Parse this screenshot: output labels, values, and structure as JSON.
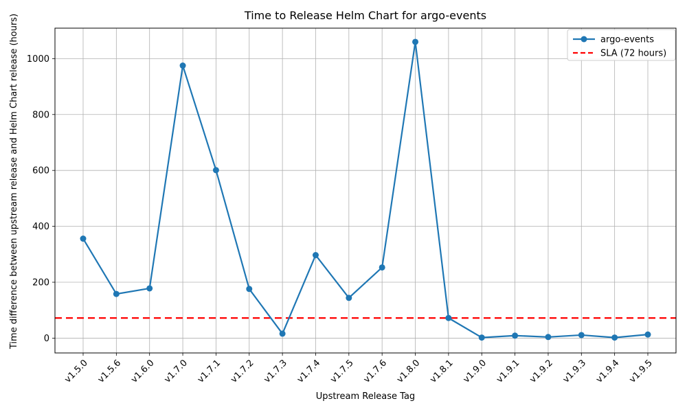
{
  "chart_data": {
    "type": "line",
    "title": "Time to Release Helm Chart for argo-events",
    "xlabel": "Upstream Release Tag",
    "ylabel": "Time difference between upstream release and Helm Chart release (hours)",
    "categories": [
      "v1.5.0",
      "v1.5.6",
      "v1.6.0",
      "v1.7.0",
      "v1.7.1",
      "v1.7.2",
      "v1.7.3",
      "v1.7.4",
      "v1.7.5",
      "v1.7.6",
      "v1.8.0",
      "v1.8.1",
      "v1.9.0",
      "v1.9.1",
      "v1.9.2",
      "v1.9.3",
      "v1.9.4",
      "v1.9.5"
    ],
    "series": [
      {
        "name": "argo-events",
        "color": "#1f77b4",
        "marker": "circle",
        "values": [
          356,
          158,
          178,
          975,
          601,
          176,
          16,
          297,
          144,
          253,
          1060,
          72,
          2,
          9,
          4,
          11,
          2,
          13
        ]
      }
    ],
    "reference_line": {
      "label": "SLA (72 hours)",
      "value": 72,
      "color": "#ff0000",
      "style": "dashed"
    },
    "yticks": [
      0,
      200,
      400,
      600,
      800,
      1000
    ],
    "ylim": [
      -53,
      1109
    ],
    "grid": true,
    "grid_color": "#b0b0b0",
    "legend_position": "upper right",
    "x_tick_rotation": 45
  }
}
